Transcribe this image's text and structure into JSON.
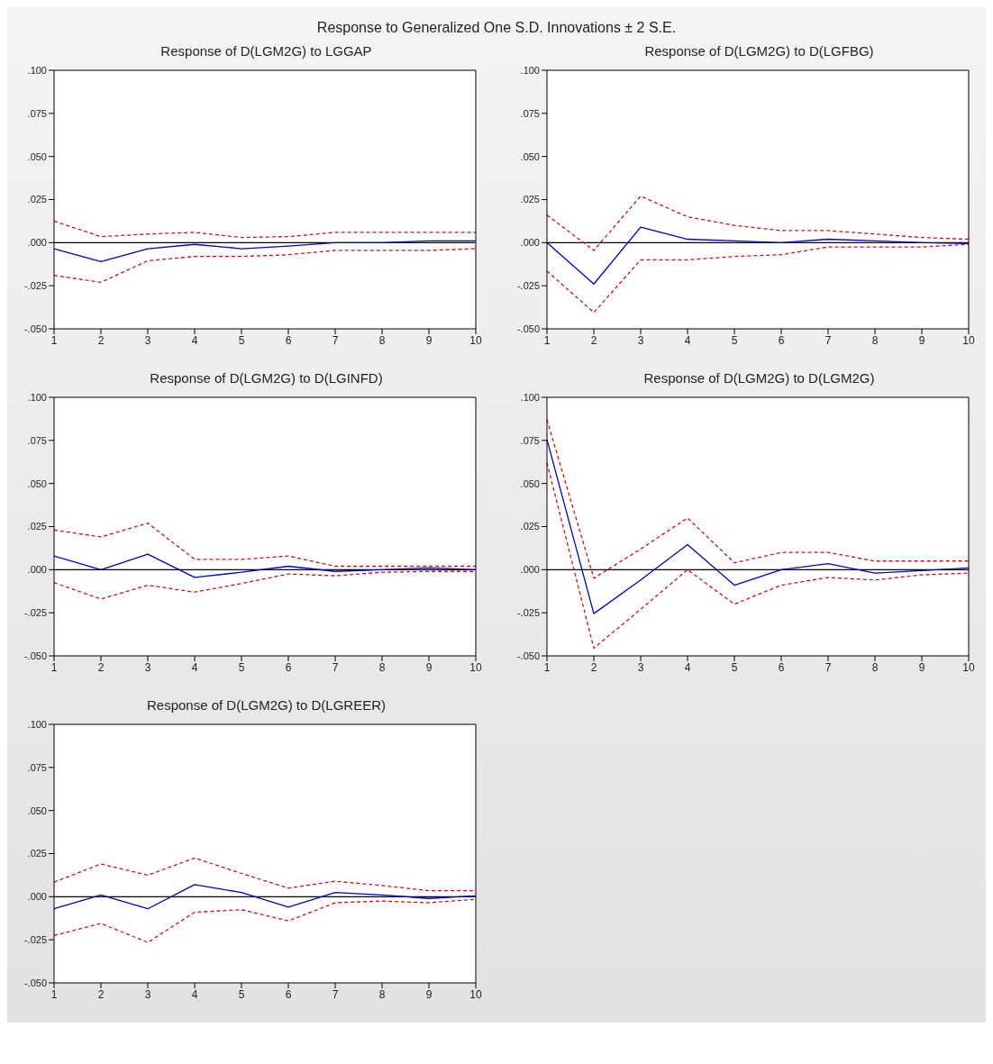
{
  "chart_data": [
    {
      "type": "line",
      "title": "Response to Generalized One S.D. Innovations ± 2 S.E.",
      "subtitle": "Response of  D(LGM2G) to LGGAP",
      "categories": [
        "1",
        "2",
        "3",
        "4",
        "5",
        "6",
        "7",
        "8",
        "9",
        "10"
      ],
      "series": [
        {
          "color": "#0000c8",
          "line_style": "solid",
          "values": [
            -0.0035,
            -0.011,
            -0.0035,
            -0.001,
            -0.0035,
            -0.002,
            0,
            0,
            0.001,
            0.001
          ]
        },
        {
          "color": "#d01010",
          "line_style": "dashed",
          "values": [
            0.0125,
            0.0035,
            0.005,
            0.006,
            0.003,
            0.0035,
            0.006,
            0.006,
            0.006,
            0.006
          ]
        },
        {
          "color": "#d01010",
          "line_style": "dashed",
          "values": [
            -0.019,
            -0.023,
            -0.0105,
            -0.008,
            -0.008,
            -0.007,
            -0.0045,
            -0.0045,
            -0.0045,
            -0.0035
          ]
        }
      ],
      "ylim": [
        -0.05,
        0.1
      ],
      "yticks": [
        {
          "value": -0.05,
          "label": "-.050"
        },
        {
          "value": -0.025,
          "label": "-.025"
        },
        {
          "value": 0,
          "label": ".000"
        },
        {
          "value": 0.025,
          "label": ".025"
        },
        {
          "value": 0.05,
          "label": ".050"
        },
        {
          "value": 0.075,
          "label": ".075"
        },
        {
          "value": 0.1,
          "label": ".100"
        }
      ],
      "ref_lines": [
        {
          "axis": "y",
          "value": 0,
          "color": "#000000"
        }
      ],
      "grid": false,
      "legend": false,
      "marker": "none"
    },
    {
      "type": "line",
      "title": "Response of D(LGM2G) to D(LGFBG)",
      "categories": [
        "1",
        "2",
        "3",
        "4",
        "5",
        "6",
        "7",
        "8",
        "9",
        "10"
      ],
      "series": [
        {
          "color": "#0000c8",
          "line_style": "solid",
          "values": [
            0,
            -0.024,
            0.009,
            0.002,
            0.001,
            0,
            0.002,
            0.001,
            0,
            -0.0005
          ]
        },
        {
          "color": "#d01010",
          "line_style": "dashed",
          "values": [
            0.016,
            -0.0045,
            0.027,
            0.015,
            0.01,
            0.007,
            0.007,
            0.005,
            0.003,
            0.002
          ]
        },
        {
          "color": "#d01010",
          "line_style": "dashed",
          "values": [
            -0.0165,
            -0.0405,
            -0.01,
            -0.01,
            -0.008,
            -0.007,
            -0.0025,
            -0.0025,
            -0.0025,
            -0.001
          ]
        }
      ],
      "ylim": [
        -0.05,
        0.1
      ],
      "yticks": [
        {
          "value": -0.05,
          "label": "-.050"
        },
        {
          "value": -0.025,
          "label": "-.025"
        },
        {
          "value": 0,
          "label": ".000"
        },
        {
          "value": 0.025,
          "label": ".025"
        },
        {
          "value": 0.05,
          "label": ".050"
        },
        {
          "value": 0.075,
          "label": ".075"
        },
        {
          "value": 0.1,
          "label": ".100"
        }
      ],
      "ref_lines": [
        {
          "axis": "y",
          "value": 0,
          "color": "#000000"
        }
      ],
      "grid": false,
      "legend": false,
      "marker": "none"
    },
    {
      "type": "line",
      "title": "Response of D(LGM2G) to D(LGINFD)",
      "categories": [
        "1",
        "2",
        "3",
        "4",
        "5",
        "6",
        "7",
        "8",
        "9",
        "10"
      ],
      "series": [
        {
          "color": "#0000c8",
          "line_style": "solid",
          "values": [
            0.008,
            0,
            0.009,
            -0.0045,
            -0.0015,
            0.002,
            -0.001,
            0,
            0.001,
            0
          ]
        },
        {
          "color": "#d01010",
          "line_style": "dashed",
          "values": [
            0.023,
            0.019,
            0.027,
            0.006,
            0.006,
            0.008,
            0.002,
            0.002,
            0.002,
            0.002
          ]
        },
        {
          "color": "#d01010",
          "line_style": "dashed",
          "values": [
            -0.0075,
            -0.017,
            -0.009,
            -0.013,
            -0.008,
            -0.0025,
            -0.0035,
            -0.0015,
            -0.001,
            -0.001
          ]
        }
      ],
      "ylim": [
        -0.05,
        0.1
      ],
      "yticks": [
        {
          "value": -0.05,
          "label": "-.050"
        },
        {
          "value": -0.025,
          "label": "-.025"
        },
        {
          "value": 0,
          "label": ".000"
        },
        {
          "value": 0.025,
          "label": ".025"
        },
        {
          "value": 0.05,
          "label": ".050"
        },
        {
          "value": 0.075,
          "label": ".075"
        },
        {
          "value": 0.1,
          "label": ".100"
        }
      ],
      "ref_lines": [
        {
          "axis": "y",
          "value": 0,
          "color": "#000000"
        }
      ],
      "grid": false,
      "legend": false,
      "marker": "none"
    },
    {
      "type": "line",
      "title": "Response of D(LGM2G) to D(LGM2G)",
      "categories": [
        "1",
        "2",
        "3",
        "4",
        "5",
        "6",
        "7",
        "8",
        "9",
        "10"
      ],
      "series": [
        {
          "color": "#0000c8",
          "line_style": "solid",
          "values": [
            0.0755,
            -0.0255,
            -0.006,
            0.0145,
            -0.009,
            0,
            0.0035,
            -0.002,
            -0.0005,
            0.001
          ]
        },
        {
          "color": "#d01010",
          "line_style": "dashed",
          "values": [
            0.087,
            -0.005,
            0.012,
            0.03,
            0.004,
            0.01,
            0.01,
            0.005,
            0.005,
            0.005
          ]
        },
        {
          "color": "#d01010",
          "line_style": "dashed",
          "values": [
            0.062,
            -0.0455,
            -0.023,
            0,
            -0.02,
            -0.009,
            -0.0045,
            -0.006,
            -0.003,
            -0.002
          ]
        }
      ],
      "ylim": [
        -0.05,
        0.1
      ],
      "yticks": [
        {
          "value": -0.05,
          "label": "-.050"
        },
        {
          "value": -0.025,
          "label": "-.025"
        },
        {
          "value": 0,
          "label": ".000"
        },
        {
          "value": 0.025,
          "label": ".025"
        },
        {
          "value": 0.05,
          "label": ".050"
        },
        {
          "value": 0.075,
          "label": ".075"
        },
        {
          "value": 0.1,
          "label": ".100"
        }
      ],
      "ref_lines": [
        {
          "axis": "y",
          "value": 0,
          "color": "#000000"
        }
      ],
      "grid": false,
      "legend": false,
      "marker": "none"
    },
    {
      "type": "line",
      "title": "Response of D(LGM2G) to D(LGREER)",
      "categories": [
        "1",
        "2",
        "3",
        "4",
        "5",
        "6",
        "7",
        "8",
        "9",
        "10"
      ],
      "series": [
        {
          "color": "#0000c8",
          "line_style": "solid",
          "values": [
            -0.007,
            0.001,
            -0.007,
            0.007,
            0.0025,
            -0.006,
            0.0025,
            0.001,
            -0.001,
            0.0005
          ]
        },
        {
          "color": "#d01010",
          "line_style": "dashed",
          "values": [
            0.0085,
            0.019,
            0.0125,
            0.0225,
            0.0135,
            0.005,
            0.009,
            0.0065,
            0.0035,
            0.0035
          ]
        },
        {
          "color": "#d01010",
          "line_style": "dashed",
          "values": [
            -0.0225,
            -0.0155,
            -0.0265,
            -0.009,
            -0.0075,
            -0.014,
            -0.0035,
            -0.0025,
            -0.0035,
            -0.0015
          ]
        }
      ],
      "ylim": [
        -0.05,
        0.1
      ],
      "yticks": [
        {
          "value": -0.05,
          "label": "-.050"
        },
        {
          "value": -0.025,
          "label": "-.025"
        },
        {
          "value": 0,
          "label": ".000"
        },
        {
          "value": 0.025,
          "label": ".025"
        },
        {
          "value": 0.05,
          "label": ".050"
        },
        {
          "value": 0.075,
          "label": ".075"
        },
        {
          "value": 0.1,
          "label": ".100"
        }
      ],
      "ref_lines": [
        {
          "axis": "y",
          "value": 0,
          "color": "#000000"
        }
      ],
      "grid": false,
      "legend": false,
      "marker": "none"
    }
  ]
}
